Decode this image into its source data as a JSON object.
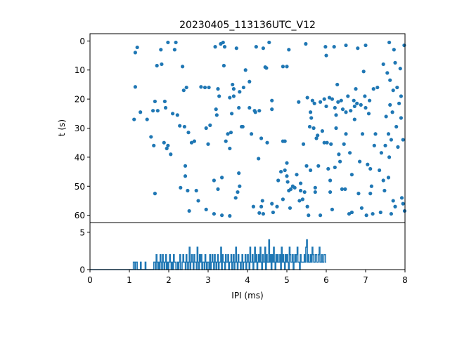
{
  "chart_data": [
    {
      "type": "scatter",
      "title": "20230405_113136UTC_V12",
      "xlabel": "",
      "ylabel": "t (s)",
      "xlim": [
        0,
        8
      ],
      "ylim": [
        62.5,
        -2.5
      ],
      "y_inverted": true,
      "yticks": [
        0,
        10,
        20,
        30,
        40,
        50,
        60
      ],
      "color": "#1f77b4",
      "points": [
        [
          1.12,
          27.0
        ],
        [
          1.15,
          4.0
        ],
        [
          1.15,
          15.8
        ],
        [
          1.2,
          2.2
        ],
        [
          1.28,
          24.5
        ],
        [
          1.45,
          27.0
        ],
        [
          1.55,
          33.0
        ],
        [
          1.6,
          24.0
        ],
        [
          1.62,
          36.0
        ],
        [
          1.65,
          20.8
        ],
        [
          1.65,
          52.5
        ],
        [
          1.7,
          8.5
        ],
        [
          1.72,
          24.0
        ],
        [
          1.8,
          3.0
        ],
        [
          1.82,
          8.0
        ],
        [
          1.88,
          35.0
        ],
        [
          1.9,
          20.8
        ],
        [
          1.92,
          23.0
        ],
        [
          1.95,
          37.0
        ],
        [
          1.98,
          36.0
        ],
        [
          1.98,
          0.5
        ],
        [
          2.05,
          39.0
        ],
        [
          2.1,
          25.0
        ],
        [
          2.15,
          3.0
        ],
        [
          2.18,
          0.5
        ],
        [
          2.22,
          25.5
        ],
        [
          2.28,
          29.2
        ],
        [
          2.3,
          50.5
        ],
        [
          2.35,
          8.8
        ],
        [
          2.38,
          17.0
        ],
        [
          2.4,
          29.5
        ],
        [
          2.42,
          43.0
        ],
        [
          2.42,
          46.5
        ],
        [
          2.45,
          16.0
        ],
        [
          2.48,
          51.5
        ],
        [
          2.5,
          31.5
        ],
        [
          2.52,
          58.5
        ],
        [
          2.58,
          35.0
        ],
        [
          2.65,
          34.5
        ],
        [
          2.7,
          51.5
        ],
        [
          2.75,
          55.0
        ],
        [
          2.82,
          15.8
        ],
        [
          2.92,
          16.0
        ],
        [
          2.95,
          30.0
        ],
        [
          2.95,
          58.0
        ],
        [
          3.0,
          35.5
        ],
        [
          3.02,
          16.0
        ],
        [
          3.05,
          29.0
        ],
        [
          3.15,
          48.0
        ],
        [
          3.15,
          59.5
        ],
        [
          3.18,
          2.0
        ],
        [
          3.2,
          23.5
        ],
        [
          3.22,
          25.5
        ],
        [
          3.25,
          16.5
        ],
        [
          3.25,
          51.0
        ],
        [
          3.28,
          19.0
        ],
        [
          3.32,
          1.0
        ],
        [
          3.35,
          47.0
        ],
        [
          3.35,
          60.0
        ],
        [
          3.38,
          0.5
        ],
        [
          3.4,
          8.5
        ],
        [
          3.42,
          2.0
        ],
        [
          3.45,
          34.5
        ],
        [
          3.5,
          32.0
        ],
        [
          3.55,
          19.5
        ],
        [
          3.55,
          60.2
        ],
        [
          3.55,
          37.0
        ],
        [
          3.58,
          31.5
        ],
        [
          3.6,
          25.0
        ],
        [
          3.62,
          15.0
        ],
        [
          3.65,
          16.5
        ],
        [
          3.65,
          19.0
        ],
        [
          3.7,
          54.0
        ],
        [
          3.72,
          2.5
        ],
        [
          3.75,
          52.0
        ],
        [
          3.78,
          23.0
        ],
        [
          3.78,
          45.5
        ],
        [
          3.8,
          50.0
        ],
        [
          3.8,
          17.5
        ],
        [
          3.85,
          29.5
        ],
        [
          3.88,
          29.5
        ],
        [
          3.9,
          16.0
        ],
        [
          3.95,
          10.0
        ],
        [
          4.05,
          14.0
        ],
        [
          4.05,
          23.0
        ],
        [
          4.1,
          32.0
        ],
        [
          4.15,
          57.0
        ],
        [
          4.18,
          24.0
        ],
        [
          4.2,
          24.5
        ],
        [
          4.22,
          2.0
        ],
        [
          4.28,
          40.5
        ],
        [
          4.3,
          59.2
        ],
        [
          4.3,
          24.0
        ],
        [
          4.35,
          33.5
        ],
        [
          4.35,
          57.0
        ],
        [
          4.38,
          55.0
        ],
        [
          4.4,
          59.5
        ],
        [
          4.4,
          2.5
        ],
        [
          4.45,
          9.0
        ],
        [
          4.48,
          9.3
        ],
        [
          4.5,
          35.0
        ],
        [
          4.55,
          0.5
        ],
        [
          4.62,
          20.5
        ],
        [
          4.62,
          23.5
        ],
        [
          4.62,
          56.0
        ],
        [
          4.65,
          59.0
        ],
        [
          4.75,
          57.0
        ],
        [
          4.78,
          48.0
        ],
        [
          4.85,
          45.0
        ],
        [
          4.9,
          34.5
        ],
        [
          4.9,
          8.8
        ],
        [
          4.9,
          54.5
        ],
        [
          4.95,
          44.5
        ],
        [
          4.95,
          34.5
        ],
        [
          5.0,
          42.0
        ],
        [
          5.0,
          8.8
        ],
        [
          5.0,
          46.5
        ],
        [
          5.02,
          48.5
        ],
        [
          5.05,
          3.0
        ],
        [
          5.05,
          51.5
        ],
        [
          5.08,
          57.5
        ],
        [
          5.1,
          51.0
        ],
        [
          5.15,
          50.0
        ],
        [
          5.2,
          50.5
        ],
        [
          5.25,
          46.0
        ],
        [
          5.3,
          21.0
        ],
        [
          5.32,
          55.0
        ],
        [
          5.35,
          49.0
        ],
        [
          5.35,
          51.5
        ],
        [
          5.4,
          54.5
        ],
        [
          5.42,
          35.5
        ],
        [
          5.45,
          52.0
        ],
        [
          5.48,
          1.0
        ],
        [
          5.5,
          43.0
        ],
        [
          5.52,
          19.5
        ],
        [
          5.52,
          57.0
        ],
        [
          5.55,
          60.0
        ],
        [
          5.58,
          29.5
        ],
        [
          5.6,
          24.5
        ],
        [
          5.6,
          44.5
        ],
        [
          5.62,
          26.5
        ],
        [
          5.65,
          20.5
        ],
        [
          5.68,
          30.0
        ],
        [
          5.7,
          21.5
        ],
        [
          5.72,
          50.5
        ],
        [
          5.72,
          52.0
        ],
        [
          5.75,
          33.5
        ],
        [
          5.78,
          32.5
        ],
        [
          5.8,
          43.0
        ],
        [
          5.85,
          21.0
        ],
        [
          5.85,
          60.0
        ],
        [
          5.9,
          31.0
        ],
        [
          5.95,
          20.0
        ],
        [
          5.95,
          35.0
        ],
        [
          5.98,
          2.0
        ],
        [
          6.0,
          5.0
        ],
        [
          6.0,
          22.5
        ],
        [
          6.02,
          35.0
        ],
        [
          6.05,
          44.0
        ],
        [
          6.08,
          19.5
        ],
        [
          6.1,
          48.0
        ],
        [
          6.1,
          52.0
        ],
        [
          6.12,
          35.5
        ],
        [
          6.15,
          20.0
        ],
        [
          6.15,
          58.0
        ],
        [
          6.2,
          2.0
        ],
        [
          6.22,
          43.5
        ],
        [
          6.22,
          23.0
        ],
        [
          6.25,
          25.5
        ],
        [
          6.25,
          30.0
        ],
        [
          6.28,
          15.0
        ],
        [
          6.3,
          21.0
        ],
        [
          6.32,
          39.0
        ],
        [
          6.35,
          41.5
        ],
        [
          6.38,
          20.5
        ],
        [
          6.4,
          51.0
        ],
        [
          6.42,
          23.5
        ],
        [
          6.45,
          35.5
        ],
        [
          6.48,
          51.0
        ],
        [
          6.5,
          32.0
        ],
        [
          6.5,
          24.5
        ],
        [
          6.5,
          1.5
        ],
        [
          6.55,
          19.0
        ],
        [
          6.58,
          59.5
        ],
        [
          6.6,
          38.5
        ],
        [
          6.62,
          24.0
        ],
        [
          6.65,
          59.0
        ],
        [
          6.65,
          46.0
        ],
        [
          6.7,
          20.5
        ],
        [
          6.72,
          22.5
        ],
        [
          6.72,
          27.0
        ],
        [
          6.75,
          16.5
        ],
        [
          6.78,
          21.5
        ],
        [
          6.8,
          2.5
        ],
        [
          6.82,
          52.5
        ],
        [
          6.85,
          41.5
        ],
        [
          6.88,
          22.0
        ],
        [
          6.9,
          57.5
        ],
        [
          6.92,
          32.0
        ],
        [
          6.95,
          10.5
        ],
        [
          6.98,
          19.0
        ],
        [
          7.0,
          23.0
        ],
        [
          7.0,
          1.5
        ],
        [
          7.02,
          60.0
        ],
        [
          7.05,
          42.5
        ],
        [
          7.08,
          25.0
        ],
        [
          7.1,
          20.5
        ],
        [
          7.12,
          52.5
        ],
        [
          7.12,
          44.0
        ],
        [
          7.15,
          50.0
        ],
        [
          7.18,
          59.5
        ],
        [
          7.2,
          16.5
        ],
        [
          7.22,
          36.0
        ],
        [
          7.25,
          32.0
        ],
        [
          7.3,
          16.0
        ],
        [
          7.35,
          44.5
        ],
        [
          7.38,
          59.0
        ],
        [
          7.4,
          38.5
        ],
        [
          7.45,
          48.0
        ],
        [
          7.48,
          51.5
        ],
        [
          7.5,
          36.0
        ],
        [
          7.52,
          26.0
        ],
        [
          7.55,
          11.0
        ],
        [
          7.58,
          32.0
        ],
        [
          7.6,
          40.0
        ],
        [
          7.62,
          13.5
        ],
        [
          7.65,
          59.5
        ],
        [
          7.65,
          34.0
        ],
        [
          7.68,
          24.5
        ],
        [
          7.7,
          17.0
        ],
        [
          7.72,
          3.0
        ],
        [
          7.75,
          57.0
        ],
        [
          7.78,
          29.5
        ],
        [
          7.8,
          16.0
        ],
        [
          7.82,
          36.5
        ],
        [
          7.85,
          21.5
        ],
        [
          7.88,
          9.5
        ],
        [
          7.9,
          19.0
        ],
        [
          7.92,
          54.0
        ],
        [
          7.95,
          56.0
        ],
        [
          7.98,
          1.5
        ],
        [
          7.99,
          58.5
        ],
        [
          7.95,
          34.0
        ],
        [
          7.62,
          22.0
        ],
        [
          7.45,
          8.0
        ],
        [
          7.58,
          47.0
        ],
        [
          7.6,
          0.5
        ],
        [
          7.7,
          55.0
        ],
        [
          7.75,
          7.5
        ],
        [
          7.9,
          26.5
        ]
      ]
    },
    {
      "type": "line",
      "xlabel": "IPI (ms)",
      "ylabel": "",
      "xlim": [
        0,
        8
      ],
      "ylim": [
        0,
        6.3
      ],
      "xticks": [
        0,
        1,
        2,
        3,
        4,
        5,
        6,
        7,
        8
      ],
      "yticks": [
        0,
        5
      ],
      "color": "#1f77b4",
      "bin_width": 0.02,
      "values": [
        0,
        0,
        0,
        0,
        0,
        0,
        0,
        0,
        0,
        0,
        0,
        0,
        0,
        0,
        0,
        0,
        0,
        0,
        0,
        0,
        0,
        0,
        0,
        0,
        0,
        0,
        0,
        0,
        0,
        0,
        0,
        0,
        0,
        0,
        0,
        0,
        0,
        0,
        0,
        0,
        0,
        0,
        0,
        0,
        0,
        0,
        0,
        0,
        0,
        0,
        0,
        0,
        0,
        0,
        0,
        1,
        1,
        0,
        1,
        1,
        0,
        0,
        0,
        0,
        1,
        0,
        0,
        0,
        0,
        0,
        1,
        0,
        0,
        0,
        0,
        0,
        0,
        0,
        0,
        0,
        0,
        1,
        1,
        0,
        2,
        1,
        0,
        1,
        0,
        2,
        1,
        0,
        2,
        1,
        0,
        1,
        2,
        0,
        1,
        0,
        1,
        2,
        1,
        0,
        1,
        0,
        2,
        1,
        1,
        0,
        0,
        1,
        0,
        1,
        2,
        0,
        0,
        1,
        2,
        1,
        1,
        0,
        2,
        1,
        0,
        1,
        3,
        0,
        1,
        2,
        1,
        0,
        2,
        1,
        1,
        0,
        3,
        1,
        0,
        2,
        1,
        2,
        0,
        1,
        1,
        0,
        2,
        1,
        0,
        1,
        1,
        0,
        2,
        0,
        1,
        2,
        1,
        0,
        2,
        1,
        0,
        1,
        2,
        0,
        1,
        1,
        3,
        0,
        2,
        1,
        1,
        0,
        2,
        1,
        1,
        2,
        0,
        1,
        1,
        2,
        0,
        1,
        2,
        0,
        1,
        3,
        1,
        0,
        2,
        1,
        1,
        0,
        1,
        2,
        0,
        1,
        1,
        2,
        0,
        1,
        2,
        1,
        0,
        3,
        1,
        1,
        2,
        0,
        1,
        3,
        1,
        2,
        0,
        1,
        2,
        1,
        3,
        1,
        0,
        2,
        1,
        1,
        3,
        0,
        2,
        1,
        1,
        4,
        1,
        2,
        0,
        2,
        1,
        3,
        1,
        0,
        2,
        1,
        2,
        1,
        1,
        2,
        0,
        3,
        1,
        2,
        1,
        0,
        2,
        1,
        2,
        1,
        0,
        3,
        2,
        1,
        1,
        2,
        0,
        1,
        2,
        1,
        2,
        3,
        1,
        1,
        0,
        2,
        1,
        1,
        1,
        1,
        2,
        1,
        3,
        4,
        1,
        2,
        1,
        1,
        2,
        1,
        3,
        2,
        1,
        1,
        2,
        2,
        1,
        1,
        2,
        3,
        1,
        1,
        2,
        1,
        1,
        2,
        2,
        1
      ]
    }
  ]
}
